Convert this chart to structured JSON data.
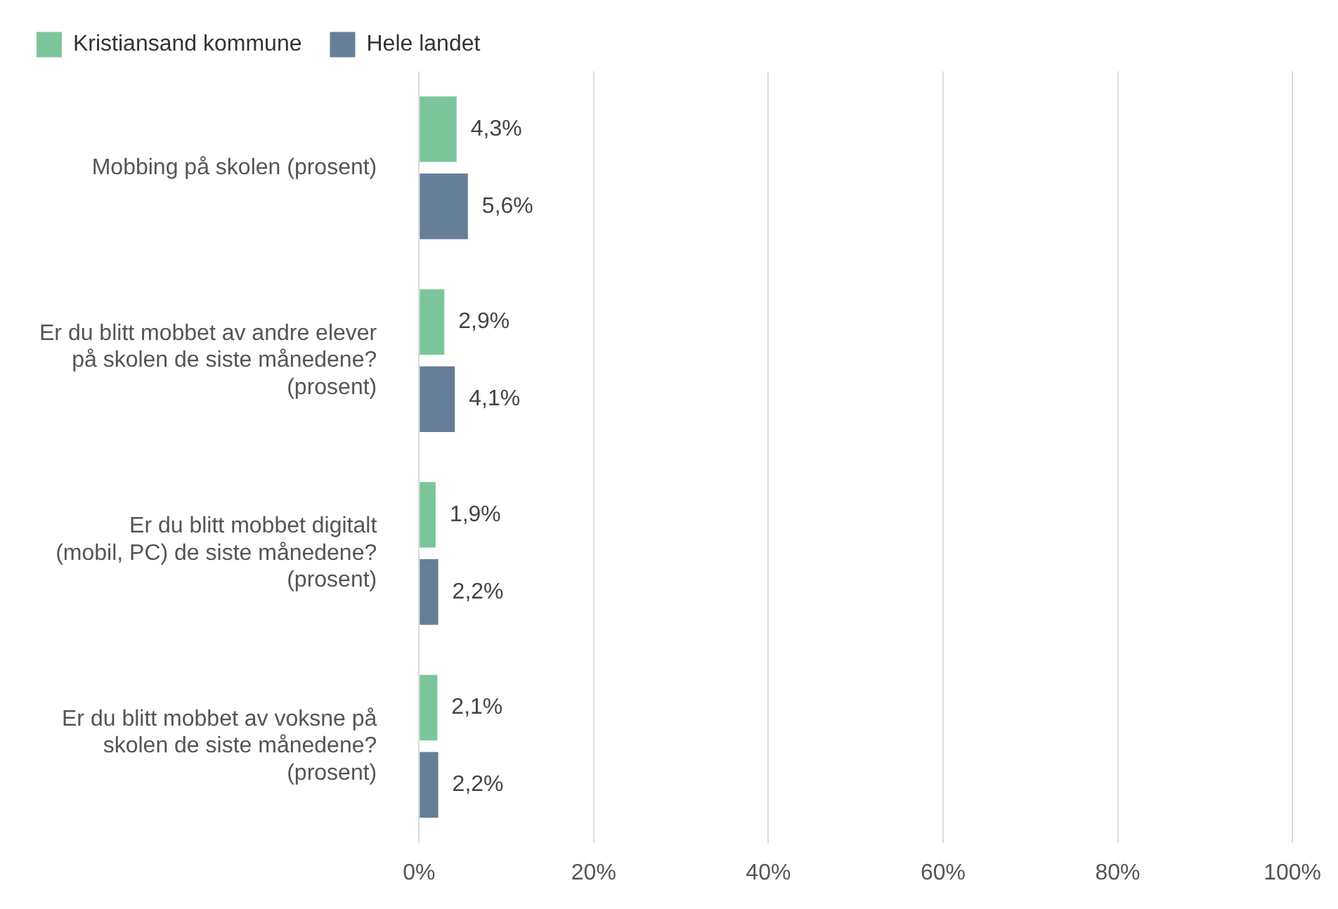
{
  "chart_data": {
    "type": "bar",
    "orientation": "horizontal",
    "categories": [
      "Mobbing på skolen (prosent)",
      "Er du blitt mobbet av andre elever på skolen de siste månedene? (prosent)",
      "Er du blitt mobbet digitalt (mobil, PC) de siste månedene? (prosent)",
      "Er du blitt mobbet av voksne på skolen de siste månedene? (prosent)"
    ],
    "series": [
      {
        "name": "Kristiansand kommune",
        "color": "#7cc59b",
        "values": [
          4.3,
          2.9,
          1.9,
          2.1
        ],
        "value_labels": [
          "4,3%",
          "2,9%",
          "1,9%",
          "2,1%"
        ]
      },
      {
        "name": "Hele landet",
        "color": "#667f99",
        "values": [
          5.6,
          4.1,
          2.2,
          2.2
        ],
        "value_labels": [
          "5,6%",
          "4,1%",
          "2,2%",
          "2,2%"
        ]
      }
    ],
    "xlim": [
      0,
      100
    ],
    "xticks": [
      {
        "value": 0,
        "label": "0%"
      },
      {
        "value": 20,
        "label": "20%"
      },
      {
        "value": 40,
        "label": "40%"
      },
      {
        "value": 60,
        "label": "60%"
      },
      {
        "value": 80,
        "label": "80%"
      },
      {
        "value": 100,
        "label": "100%"
      }
    ],
    "grid": "x",
    "legend": "top left"
  }
}
